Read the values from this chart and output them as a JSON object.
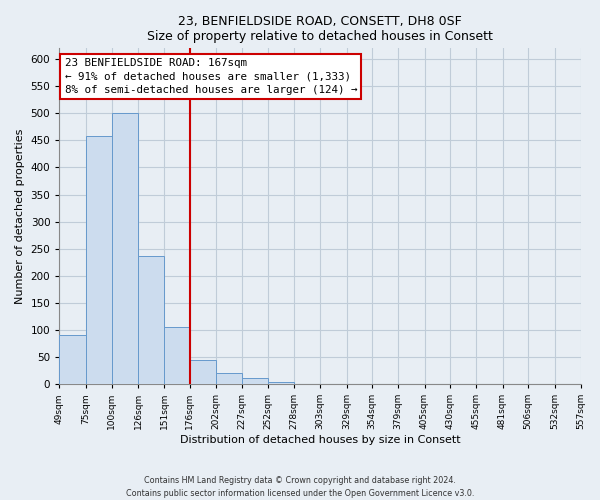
{
  "title": "23, BENFIELDSIDE ROAD, CONSETT, DH8 0SF",
  "subtitle": "Size of property relative to detached houses in Consett",
  "xlabel": "Distribution of detached houses by size in Consett",
  "ylabel": "Number of detached properties",
  "bar_edges": [
    49,
    75,
    100,
    126,
    151,
    176,
    202,
    227,
    252,
    278,
    303,
    329,
    354,
    379,
    405,
    430,
    455,
    481,
    506,
    532,
    557
  ],
  "bar_heights": [
    90,
    458,
    500,
    236,
    106,
    45,
    20,
    12,
    3,
    1,
    0,
    0,
    0,
    0,
    0,
    0,
    0,
    0,
    0,
    1
  ],
  "bar_color": "#ccdcee",
  "bar_edge_color": "#6699cc",
  "vline_x": 176,
  "vline_color": "#cc0000",
  "annotation_title": "23 BENFIELDSIDE ROAD: 167sqm",
  "annotation_line1": "← 91% of detached houses are smaller (1,333)",
  "annotation_line2": "8% of semi-detached houses are larger (124) →",
  "ylim": [
    0,
    620
  ],
  "yticks": [
    0,
    50,
    100,
    150,
    200,
    250,
    300,
    350,
    400,
    450,
    500,
    550,
    600
  ],
  "tick_labels": [
    "49sqm",
    "75sqm",
    "100sqm",
    "126sqm",
    "151sqm",
    "176sqm",
    "202sqm",
    "227sqm",
    "252sqm",
    "278sqm",
    "303sqm",
    "329sqm",
    "354sqm",
    "379sqm",
    "405sqm",
    "430sqm",
    "455sqm",
    "481sqm",
    "506sqm",
    "532sqm",
    "557sqm"
  ],
  "footer1": "Contains HM Land Registry data © Crown copyright and database right 2024.",
  "footer2": "Contains public sector information licensed under the Open Government Licence v3.0.",
  "background_color": "#e8eef4",
  "plot_bg_color": "#e8eef4",
  "grid_color": "#c0ccd8"
}
